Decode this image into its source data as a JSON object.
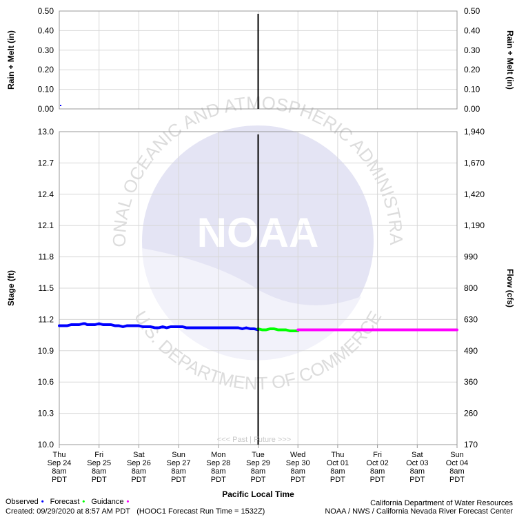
{
  "chart_data": {
    "type": "line",
    "precip_panel": {
      "ylabel_left": "Rain + Melt (in)",
      "ylabel_right": "Rain + Melt (in)",
      "y_ticks": [
        "0.50",
        "0.40",
        "0.30",
        "0.20",
        "0.10",
        "0.00"
      ],
      "y_tick_values": [
        0.5,
        0.4,
        0.3,
        0.2,
        0.1,
        0.0
      ],
      "ylim": [
        0,
        0.5
      ]
    },
    "stage_panel": {
      "ylabel_left": "Stage (ft)",
      "ylabel_right": "Flow (cfs)",
      "ylim": [
        10.0,
        13.0
      ],
      "y_ticks_left": [
        "13.0",
        "12.7",
        "12.4",
        "12.1",
        "11.8",
        "11.5",
        "11.2",
        "10.9",
        "10.6",
        "10.3",
        "10.0"
      ],
      "y_tick_values_left": [
        13.0,
        12.7,
        12.4,
        12.1,
        11.8,
        11.5,
        11.2,
        10.9,
        10.6,
        10.3,
        10.0
      ],
      "y_ticks_right": [
        "1,940",
        "1,670",
        "1,420",
        "1,190",
        "990",
        "800",
        "630",
        "490",
        "360",
        "260",
        "170"
      ],
      "series": [
        {
          "name": "Observed",
          "color": "#0000ff",
          "x": [
            0,
            0.1,
            0.2,
            0.3,
            0.4,
            0.5,
            0.6,
            0.65,
            0.7,
            0.8,
            0.9,
            1.0,
            1.1,
            1.2,
            1.3,
            1.4,
            1.5,
            1.6,
            1.7,
            1.8,
            1.9,
            2.0,
            2.1,
            2.2,
            2.3,
            2.4,
            2.5,
            2.6,
            2.7,
            2.8,
            2.9,
            3.0,
            3.1,
            3.2,
            3.3,
            3.4,
            3.5,
            3.6,
            3.7,
            3.8,
            3.9,
            4.0,
            4.1,
            4.2,
            4.3,
            4.4,
            4.5,
            4.6,
            4.7,
            4.8,
            4.9,
            5.0
          ],
          "y": [
            11.14,
            11.14,
            11.14,
            11.15,
            11.15,
            11.15,
            11.16,
            11.16,
            11.15,
            11.15,
            11.15,
            11.16,
            11.15,
            11.15,
            11.15,
            11.14,
            11.14,
            11.13,
            11.14,
            11.14,
            11.14,
            11.14,
            11.13,
            11.13,
            11.13,
            11.12,
            11.12,
            11.13,
            11.12,
            11.13,
            11.13,
            11.13,
            11.13,
            11.12,
            11.12,
            11.12,
            11.12,
            11.12,
            11.12,
            11.12,
            11.12,
            11.12,
            11.12,
            11.12,
            11.12,
            11.12,
            11.12,
            11.11,
            11.12,
            11.11,
            11.11,
            11.1
          ]
        },
        {
          "name": "Forecast",
          "color": "#00ff00",
          "x": [
            5.0,
            5.1,
            5.2,
            5.3,
            5.4,
            5.5,
            5.6,
            5.7,
            5.8,
            5.9,
            6.0
          ],
          "y": [
            11.11,
            11.1,
            11.1,
            11.11,
            11.11,
            11.1,
            11.1,
            11.1,
            11.09,
            11.09,
            11.09
          ]
        },
        {
          "name": "Guidance",
          "color": "#ff00ff",
          "x": [
            6.0,
            6.5,
            7.0,
            7.5,
            8.0,
            8.5,
            9.0,
            9.5,
            10.0
          ],
          "y": [
            11.1,
            11.1,
            11.1,
            11.1,
            11.1,
            11.1,
            11.1,
            11.1,
            11.1
          ]
        }
      ]
    },
    "x_categories": [
      [
        "Thu",
        "Sep 24",
        "8am",
        "PDT"
      ],
      [
        "Fri",
        "Sep 25",
        "8am",
        "PDT"
      ],
      [
        "Sat",
        "Sep 26",
        "8am",
        "PDT"
      ],
      [
        "Sun",
        "Sep 27",
        "8am",
        "PDT"
      ],
      [
        "Mon",
        "Sep 28",
        "8am",
        "PDT"
      ],
      [
        "Tue",
        "Sep 29",
        "8am",
        "PDT"
      ],
      [
        "Wed",
        "Sep 30",
        "8am",
        "PDT"
      ],
      [
        "Thu",
        "Oct 01",
        "8am",
        "PDT"
      ],
      [
        "Fri",
        "Oct 02",
        "8am",
        "PDT"
      ],
      [
        "Sat",
        "Oct 03",
        "8am",
        "PDT"
      ],
      [
        "Sun",
        "Oct 04",
        "8am",
        "PDT"
      ]
    ],
    "xlabel": "Pacific Local Time",
    "now_index": 5,
    "past_future_label": "<<< Past | Future >>>",
    "watermark_text": "NOAA",
    "watermark_ring_top": "NATIONAL OCEANIC AND ATMOSPHERIC ADMINISTRATION",
    "watermark_ring_bottom": "U.S. DEPARTMENT OF COMMERCE"
  },
  "legend": {
    "observed": "Observed",
    "forecast": "Forecast",
    "guidance": "Guidance",
    "observed_color": "#0000ff",
    "forecast_color": "#00ff00",
    "guidance_color": "#ff00ff"
  },
  "footer": {
    "created": "Created: 09/29/2020 at 8:57 AM PDT",
    "run": "(HOOC1 Forecast Run Time = 1532Z)",
    "agency1": "California Department of Water Resources",
    "agency2": "NOAA / NWS / California Nevada River Forecast Center"
  }
}
